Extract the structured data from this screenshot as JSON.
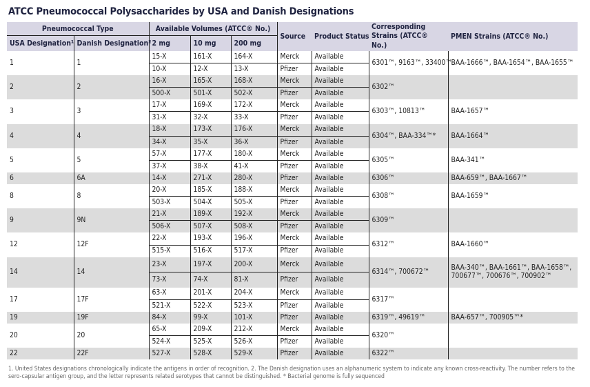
{
  "title": "ATCC Pneumococcal Polysaccharides by USA and Danish Designations",
  "headers": {
    "pneumococcal_type": "Pneumococcal Type",
    "available_volumes": "Available Volumes (ATCC® No.)",
    "source": "Source",
    "product_status": "Product Status",
    "corresponding_strains": "Corresponding Strains (ATCC® No.)",
    "pmen_strains": "PMEN Strains (ATCC® No.)",
    "usa": "USA Designation¹",
    "danish": "Danish Designation²",
    "mg2": "2 mg",
    "mg10": "10 mg",
    "mg200": "200 mg"
  },
  "groups": [
    {
      "usa": "1",
      "danish": "1",
      "strains": "6301™, 9163™, 33400™",
      "pmen": "BAA-1666™, BAA-1654™, BAA-1655™",
      "rows": [
        [
          "15-X",
          "161-X",
          "164-X",
          "Merck",
          "Available"
        ],
        [
          "10-X",
          "12-X",
          "13-X",
          "Pfizer",
          "Available"
        ]
      ]
    },
    {
      "usa": "2",
      "danish": "2",
      "strains": "6302™",
      "pmen": "",
      "rows": [
        [
          "16-X",
          "165-X",
          "168-X",
          "Merck",
          "Available"
        ],
        [
          "500-X",
          "501-X",
          "502-X",
          "Pfizer",
          "Available"
        ]
      ]
    },
    {
      "usa": "3",
      "danish": "3",
      "strains": "6303™, 10813™",
      "pmen": "BAA-1657™",
      "rows": [
        [
          "17-X",
          "169-X",
          "172-X",
          "Merck",
          "Available"
        ],
        [
          "31-X",
          "32-X",
          "33-X",
          "Pfizer",
          "Available"
        ]
      ]
    },
    {
      "usa": "4",
      "danish": "4",
      "strains": "6304™, BAA-334™*",
      "pmen": "BAA-1664™",
      "rows": [
        [
          "18-X",
          "173-X",
          "176-X",
          "Merck",
          "Available"
        ],
        [
          "34-X",
          "35-X",
          "36-X",
          "Pfizer",
          "Available"
        ]
      ]
    },
    {
      "usa": "5",
      "danish": "5",
      "strains": "6305™",
      "pmen": "BAA-341™",
      "rows": [
        [
          "57-X",
          "177-X",
          "180-X",
          "Merck",
          "Available"
        ],
        [
          "37-X",
          "38-X",
          "41-X",
          "Pfizer",
          "Available"
        ]
      ]
    },
    {
      "usa": "6",
      "danish": "6A",
      "strains": "6306™",
      "pmen": "BAA-659™, BAA-1667™",
      "rows": [
        [
          "14-X",
          "271-X",
          "280-X",
          "Pfizer",
          "Available"
        ]
      ]
    },
    {
      "usa": "8",
      "danish": "8",
      "strains": "6308™",
      "pmen": "BAA-1659™",
      "rows": [
        [
          "20-X",
          "185-X",
          "188-X",
          "Merck",
          "Available"
        ],
        [
          "503-X",
          "504-X",
          "505-X",
          "Pfizer",
          "Available"
        ]
      ]
    },
    {
      "usa": "9",
      "danish": "9N",
      "strains": "6309™",
      "pmen": "",
      "rows": [
        [
          "21-X",
          "189-X",
          "192-X",
          "Merck",
          "Available"
        ],
        [
          "506-X",
          "507-X",
          "508-X",
          "Pfizer",
          "Available"
        ]
      ]
    },
    {
      "usa": "12",
      "danish": "12F",
      "strains": "6312™",
      "pmen": "BAA-1660™",
      "rows": [
        [
          "22-X",
          "193-X",
          "196-X",
          "Merck",
          "Available"
        ],
        [
          "515-X",
          "516-X",
          "517-X",
          "Pfizer",
          "Available"
        ]
      ]
    },
    {
      "usa": "14",
      "danish": "14",
      "strains": "6314™, 700672™",
      "pmen": "BAA-340™, BAA-1661™, BAA-1658™, 700677™, 700676™, 700902™",
      "rows": [
        [
          "23-X",
          "197-X",
          "200-X",
          "Merck",
          "Available"
        ],
        [
          "73-X",
          "74-X",
          "81-X",
          "Pfizer",
          "Available"
        ]
      ]
    },
    {
      "usa": "17",
      "danish": "17F",
      "strains": "6317™",
      "pmen": "",
      "rows": [
        [
          "63-X",
          "201-X",
          "204-X",
          "Merck",
          "Available"
        ],
        [
          "521-X",
          "522-X",
          "523-X",
          "Pfizer",
          "Available"
        ]
      ]
    },
    {
      "usa": "19",
      "danish": "19F",
      "strains": "6319™, 49619™",
      "pmen": "BAA-657™, 700905™*",
      "rows": [
        [
          "84-X",
          "99-X",
          "101-X",
          "Pfizer",
          "Available"
        ]
      ]
    },
    {
      "usa": "20",
      "danish": "20",
      "strains": "6320™",
      "pmen": "",
      "rows": [
        [
          "65-X",
          "209-X",
          "212-X",
          "Merck",
          "Available"
        ],
        [
          "524-X",
          "525-X",
          "526-X",
          "Pfizer",
          "Available"
        ]
      ]
    },
    {
      "usa": "22",
      "danish": "22F",
      "strains": "6322™",
      "pmen": "",
      "rows": [
        [
          "527-X",
          "528-X",
          "529-X",
          "Pfizer",
          "Available"
        ]
      ]
    }
  ],
  "footnote": "1. United States designations chronologically indicate the antigens in order of recognition. 2. The Danish designation uses an alphanumeric system to indicate any known cross-reactivity. The number refers to the sero-capsular antigen group, and the letter represents related serotypes that  cannot be distinguished. * Bacterial genome is fully sequenced"
}
